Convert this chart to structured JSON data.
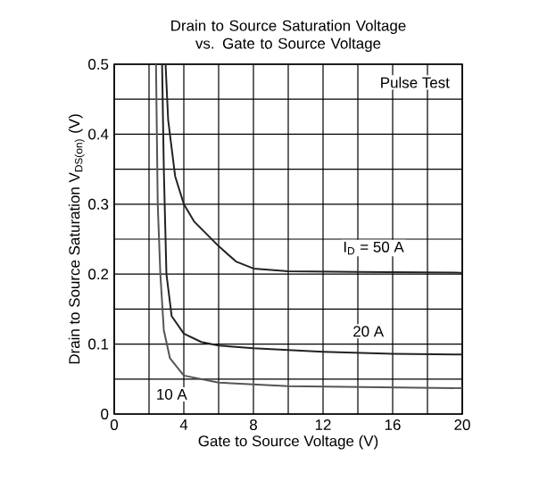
{
  "chart_data": {
    "type": "line",
    "title": "Drain to Source Saturation Voltage vs. Gate to Source Voltage",
    "xlabel": "Gate to Source Voltage (V)",
    "ylabel": "Drain to Source Saturation  V$_{DS(on)}$  (V)",
    "xlim": [
      0,
      20
    ],
    "ylim": [
      0,
      0.5
    ],
    "xticks": [
      0,
      4,
      8,
      12,
      16,
      20
    ],
    "yticks": [
      0,
      0.1,
      0.2,
      0.3,
      0.4,
      0.5
    ],
    "grid": true,
    "marker": "none",
    "line_style": "solid",
    "series": [
      {
        "color": "#222222",
        "x": [
          2.95,
          3.1,
          3.5,
          4.0,
          4.6,
          5.2,
          6,
          7,
          8,
          10,
          14,
          20
        ],
        "values": [
          0.5,
          0.42,
          0.34,
          0.3,
          0.275,
          0.26,
          0.24,
          0.218,
          0.208,
          0.204,
          0.203,
          0.202
        ]
      },
      {
        "color": "#222222",
        "x": [
          2.75,
          2.85,
          3.0,
          3.3,
          4,
          5,
          6,
          8,
          12,
          16,
          20
        ],
        "values": [
          0.5,
          0.35,
          0.2,
          0.14,
          0.115,
          0.103,
          0.098,
          0.094,
          0.089,
          0.086,
          0.085
        ]
      },
      {
        "color": "#555555",
        "x": [
          2.4,
          2.5,
          2.65,
          2.85,
          3.2,
          4,
          6,
          10,
          20
        ],
        "values": [
          0.5,
          0.3,
          0.2,
          0.12,
          0.08,
          0.055,
          0.045,
          0.04,
          0.037
        ]
      }
    ],
    "annotations": [
      "Pulse Test",
      "I$_{D}$ = 50 A",
      "20 A",
      "10 A"
    ]
  }
}
